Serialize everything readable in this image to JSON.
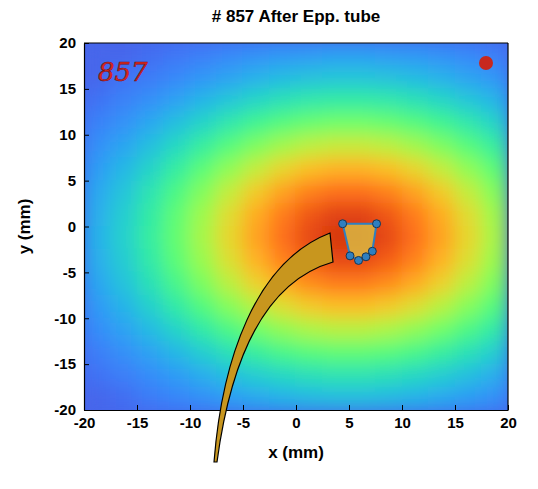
{
  "chart_data": {
    "type": "heatmap",
    "title": "# 857 After Epp. tube",
    "xlabel": "x (mm)",
    "ylabel": "y (mm)",
    "xlim": [
      -20,
      20
    ],
    "ylim": [
      -20,
      20
    ],
    "xticks": [
      -20,
      -15,
      -10,
      -5,
      0,
      5,
      10,
      15,
      20
    ],
    "yticks": [
      -20,
      -15,
      -10,
      -5,
      0,
      5,
      10,
      15,
      20
    ],
    "x": [
      -18.75,
      -16.25,
      -13.75,
      -11.25,
      -8.75,
      -6.25,
      -3.75,
      -1.25,
      1.25,
      3.75,
      6.25,
      8.75,
      11.25,
      13.75,
      16.25,
      18.75
    ],
    "y": [
      18.75,
      16.25,
      13.75,
      11.25,
      8.75,
      6.25,
      3.75,
      1.25,
      -1.25,
      -3.75,
      -6.25,
      -8.75,
      -11.25,
      -13.75,
      -16.25,
      -18.75
    ],
    "values": [
      [
        0.001,
        0.001,
        0.002,
        0.004,
        0.006,
        0.009,
        0.012,
        0.015,
        0.017,
        0.019,
        0.019,
        0.017,
        0.015,
        0.012,
        0.009,
        0.006
      ],
      [
        0.001,
        0.003,
        0.005,
        0.009,
        0.015,
        0.022,
        0.03,
        0.038,
        0.044,
        0.048,
        0.048,
        0.044,
        0.038,
        0.03,
        0.022,
        0.015
      ],
      [
        0.003,
        0.007,
        0.012,
        0.021,
        0.034,
        0.05,
        0.068,
        0.086,
        0.1,
        0.108,
        0.108,
        0.1,
        0.086,
        0.068,
        0.05,
        0.034
      ],
      [
        0.007,
        0.013,
        0.025,
        0.043,
        0.067,
        0.099,
        0.136,
        0.171,
        0.199,
        0.215,
        0.215,
        0.199,
        0.171,
        0.136,
        0.099,
        0.067
      ],
      [
        0.012,
        0.023,
        0.043,
        0.074,
        0.117,
        0.174,
        0.237,
        0.298,
        0.348,
        0.375,
        0.375,
        0.348,
        0.298,
        0.237,
        0.174,
        0.117
      ],
      [
        0.018,
        0.036,
        0.066,
        0.114,
        0.181,
        0.267,
        0.364,
        0.459,
        0.535,
        0.577,
        0.577,
        0.535,
        0.459,
        0.364,
        0.267,
        0.181
      ],
      [
        0.025,
        0.048,
        0.091,
        0.156,
        0.246,
        0.364,
        0.497,
        0.626,
        0.729,
        0.787,
        0.787,
        0.729,
        0.626,
        0.497,
        0.364,
        0.246
      ],
      [
        0.029,
        0.058,
        0.108,
        0.186,
        0.295,
        0.436,
        0.594,
        0.748,
        0.872,
        0.941,
        0.941,
        0.872,
        0.748,
        0.594,
        0.436,
        0.295
      ],
      [
        0.031,
        0.061,
        0.114,
        0.196,
        0.31,
        0.458,
        0.625,
        0.787,
        0.917,
        0.99,
        0.99,
        0.917,
        0.787,
        0.625,
        0.458,
        0.31
      ],
      [
        0.029,
        0.056,
        0.105,
        0.181,
        0.286,
        0.423,
        0.577,
        0.726,
        0.846,
        0.914,
        0.914,
        0.846,
        0.726,
        0.577,
        0.423,
        0.286
      ],
      [
        0.023,
        0.046,
        0.086,
        0.148,
        0.234,
        0.346,
        0.473,
        0.595,
        0.693,
        0.748,
        0.748,
        0.693,
        0.595,
        0.473,
        0.346,
        0.234
      ],
      [
        0.017,
        0.033,
        0.062,
        0.106,
        0.168,
        0.249,
        0.339,
        0.427,
        0.498,
        0.538,
        0.538,
        0.498,
        0.427,
        0.339,
        0.249,
        0.168
      ],
      [
        0.011,
        0.021,
        0.039,
        0.067,
        0.106,
        0.157,
        0.214,
        0.27,
        0.315,
        0.34,
        0.34,
        0.315,
        0.27,
        0.214,
        0.157,
        0.106
      ],
      [
        0.006,
        0.012,
        0.022,
        0.037,
        0.059,
        0.087,
        0.119,
        0.15,
        0.174,
        0.188,
        0.188,
        0.174,
        0.15,
        0.119,
        0.087,
        0.059
      ],
      [
        0.003,
        0.006,
        0.011,
        0.018,
        0.029,
        0.043,
        0.058,
        0.073,
        0.085,
        0.092,
        0.092,
        0.085,
        0.073,
        0.058,
        0.043,
        0.029
      ],
      [
        0.001,
        0.002,
        0.005,
        0.008,
        0.012,
        0.018,
        0.025,
        0.031,
        0.037,
        0.04,
        0.04,
        0.037,
        0.031,
        0.025,
        0.018,
        0.012
      ]
    ],
    "polygon": {
      "x": [
        4.4,
        7.6,
        7.2,
        6.6,
        5.9,
        5.1
      ],
      "y": [
        0.3,
        0.3,
        -2.7,
        -3.3,
        -3.7,
        -3.2
      ],
      "color": "#2f7fc0",
      "marker": "circle"
    },
    "annotations": [
      {
        "text": "857",
        "color": "#e0281e"
      }
    ]
  }
}
